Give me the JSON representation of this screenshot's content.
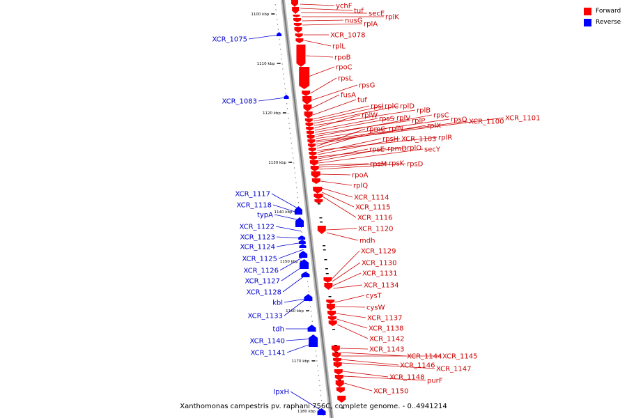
{
  "caption": "Xanthomonas campestris pv. raphani 756C, complete genome. - 0..4941214",
  "legend": {
    "forward": {
      "label": "Forward",
      "color": "#ff0000"
    },
    "reverse": {
      "label": "Reverse",
      "color": "#0000ff"
    }
  },
  "colors": {
    "forward_text": "#cc0000",
    "reverse_text": "#0000cc",
    "axis": "#888888",
    "tick": "#000000"
  },
  "ticks": [
    "1100 kbp",
    "1110 kbp",
    "1120 kbp",
    "1130 kbp",
    "1140 kbp",
    "1150 kbp",
    "1160 kbp",
    "1170 kbp",
    "1180 kbp"
  ],
  "forward_genes": [
    "ychF",
    "tuf",
    "secE",
    "rplK",
    "nusG",
    "rplA",
    "XCR_1078",
    "rplL",
    "rpoB",
    "rpoC",
    "rpsL",
    "rpsG",
    "fusA",
    "tuf",
    "rpsJ",
    "rplC",
    "rplD",
    "rplB",
    "rplW",
    "rpsS",
    "rplV",
    "rplP",
    "rpsC",
    "rpsQ",
    "XCR_1100",
    "XCR_1101",
    "rplX",
    "rpmC",
    "rplN",
    "rplR",
    "rpsH",
    "XCR_1103",
    "rplO",
    "rpsE",
    "rpmD",
    "secY",
    "rpsM",
    "rpsK",
    "rpsD",
    "rpoA",
    "rplQ",
    "XCR_1114",
    "XCR_1115",
    "XCR_1116",
    "XCR_1120",
    "mdh",
    "XCR_1129",
    "XCR_1130",
    "XCR_1131",
    "XCR_1134",
    "cysT",
    "cysW",
    "XCR_1137",
    "XCR_1138",
    "XCR_1142",
    "XCR_1143",
    "XCR_1144",
    "XCR_1145",
    "XCR_1146",
    "XCR_1147",
    "XCR_1148",
    "purF",
    "XCR_1150"
  ],
  "reverse_genes": [
    "XCR_1075",
    "XCR_1083",
    "XCR_1117",
    "XCR_1118",
    "typA",
    "XCR_1122",
    "XCR_1123",
    "XCR_1124",
    "XCR_1125",
    "XCR_1126",
    "XCR_1127",
    "XCR_1128",
    "kbl",
    "XCR_1133",
    "tdh",
    "XCR_1140",
    "XCR_1141",
    "lpxH"
  ]
}
